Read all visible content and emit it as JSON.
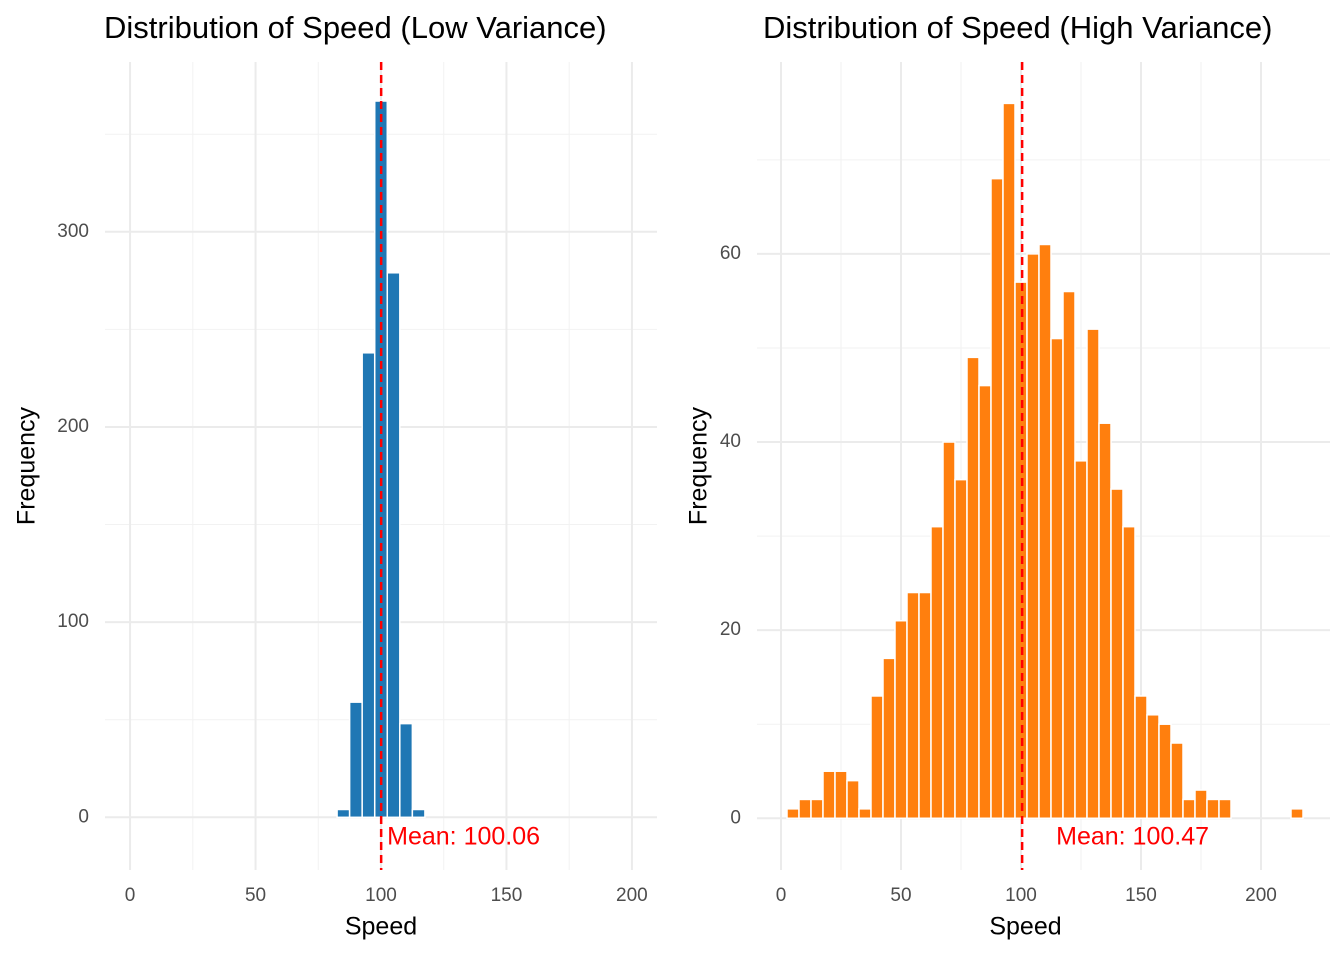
{
  "chart_data": [
    {
      "type": "histogram",
      "title": "Distribution of Speed (Low Variance)",
      "xlabel": "Speed",
      "ylabel": "Frequency",
      "bins": [
        82.5,
        87.5,
        92.5,
        97.5,
        102.5,
        107.5,
        112.5,
        117.5
      ],
      "counts": [
        4,
        59,
        238,
        367,
        279,
        48,
        4
      ],
      "color": "#1f77b4",
      "xlim": [
        -10,
        210
      ],
      "ylim": [
        -27,
        387
      ],
      "xticks": [
        0,
        50,
        100,
        150,
        200
      ],
      "yticks": [
        0,
        100,
        200,
        300
      ],
      "grid": true,
      "mean": 100.06,
      "annotation": "Mean: 100.06",
      "mean_color": "#ff0000"
    },
    {
      "type": "histogram",
      "title": "Distribution of Speed (High Variance)",
      "xlabel": "Speed",
      "ylabel": "Frequency",
      "bins": [
        2.5,
        7.5,
        12.5,
        17.5,
        22.5,
        27.5,
        32.5,
        37.5,
        42.5,
        47.5,
        52.5,
        57.5,
        62.5,
        67.5,
        72.5,
        77.5,
        82.5,
        87.5,
        92.5,
        97.5,
        102.5,
        107.5,
        112.5,
        117.5,
        122.5,
        127.5,
        132.5,
        137.5,
        142.5,
        147.5,
        152.5,
        157.5,
        162.5,
        167.5,
        172.5,
        177.5,
        182.5,
        187.5,
        192.5,
        197.5,
        202.5,
        207.5,
        212.5,
        217.5
      ],
      "counts": [
        1,
        2,
        2,
        5,
        5,
        4,
        1,
        13,
        17,
        21,
        24,
        24,
        31,
        40,
        36,
        49,
        46,
        68,
        76,
        57,
        60,
        61,
        51,
        56,
        38,
        52,
        42,
        35,
        31,
        13,
        11,
        10,
        8,
        2,
        3,
        2,
        2,
        0,
        0,
        0,
        0,
        0,
        1
      ],
      "color": "#ff7f0e",
      "xlim": [
        -10,
        228.75
      ],
      "ylim": [
        -5.5,
        80.4
      ],
      "xticks": [
        0,
        50,
        100,
        150,
        200
      ],
      "yticks": [
        0,
        20,
        40,
        60
      ],
      "grid": true,
      "mean": 100.47,
      "annotation": "Mean: 100.47",
      "mean_color": "#ff0000"
    }
  ]
}
